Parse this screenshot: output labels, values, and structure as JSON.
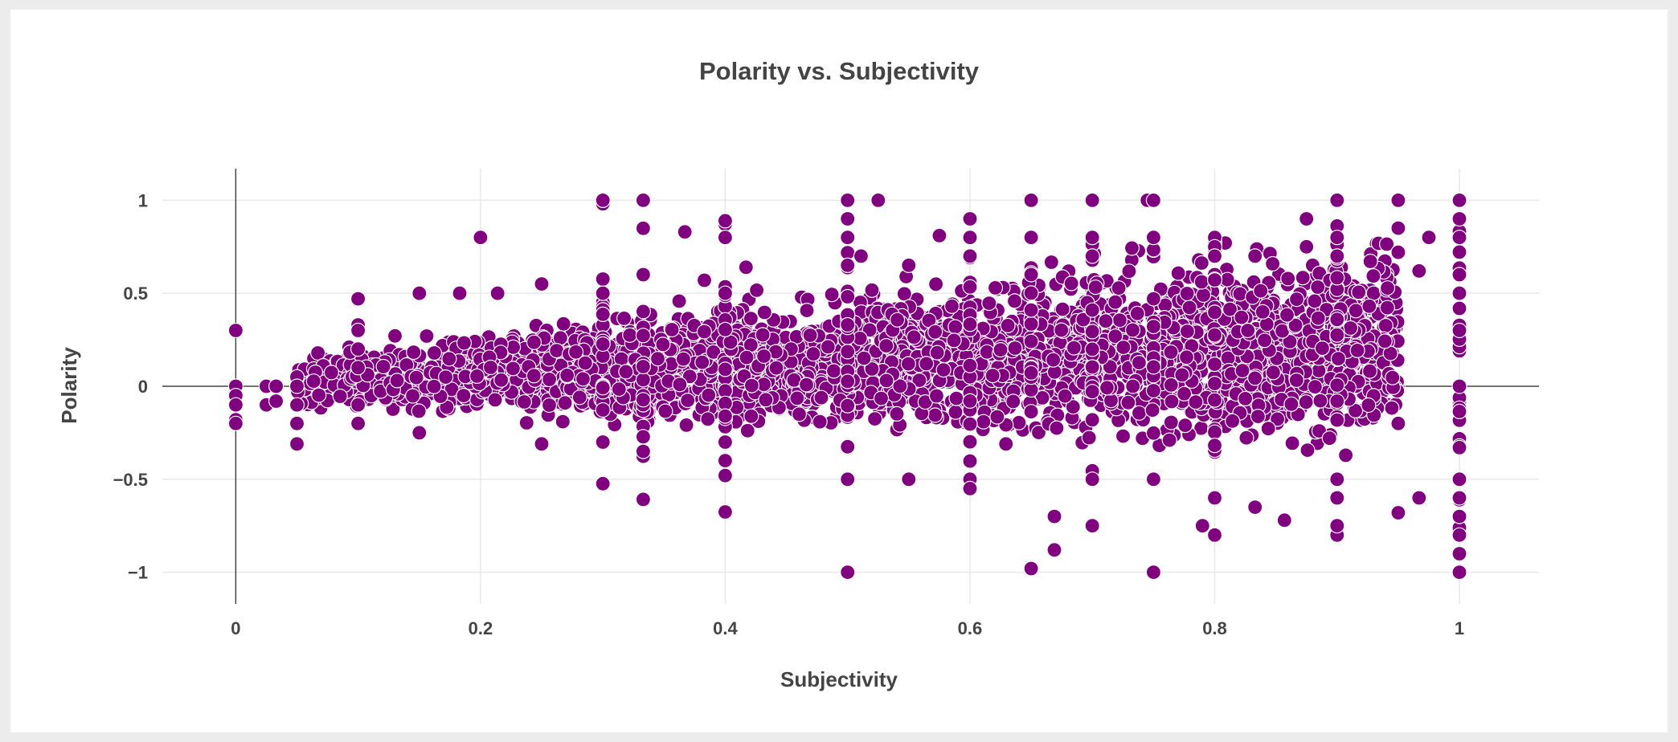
{
  "chart_data": {
    "type": "scatter",
    "title": "Polarity vs. Subjectivity",
    "xlabel": "Subjectivity",
    "ylabel": "Polarity",
    "xlim": [
      -0.06,
      1.065
    ],
    "ylim": [
      -1.17,
      1.17
    ],
    "xticks": [
      0,
      0.2,
      0.4,
      0.6,
      0.8,
      1
    ],
    "xtick_labels": [
      "0",
      "0.2",
      "0.4",
      "0.6",
      "0.8",
      "1"
    ],
    "yticks": [
      -1,
      -0.5,
      0,
      0.5,
      1
    ],
    "ytick_labels": [
      "−1",
      "−0.5",
      "0",
      "0.5",
      "1"
    ],
    "grid": true,
    "legend": "none",
    "marker_color": "#800080",
    "marker_edge_color": "#ffffff",
    "approx_point_count": 3500,
    "series": [
      {
        "points": [
          [
            0,
            0.3
          ],
          [
            0,
            0
          ],
          [
            0,
            -0.05
          ],
          [
            0,
            -0.1
          ],
          [
            0,
            -0.18
          ],
          [
            0,
            -0.2
          ],
          [
            0.025,
            0
          ],
          [
            0.025,
            -0.1
          ],
          [
            0.033,
            0
          ],
          [
            0.033,
            -0.08
          ],
          [
            0.05,
            0.05
          ],
          [
            0.05,
            0
          ],
          [
            0.05,
            -0.1
          ],
          [
            0.05,
            -0.2
          ],
          [
            0.05,
            -0.31
          ],
          [
            0.1,
            0.47
          ],
          [
            0.1,
            0.33
          ],
          [
            0.1,
            0.3
          ],
          [
            0.1,
            0.2
          ],
          [
            0.1,
            0.1
          ],
          [
            0.1,
            -0.1
          ],
          [
            0.1,
            -0.2
          ],
          [
            0.15,
            0.5
          ],
          [
            0.15,
            -0.25
          ],
          [
            0.156,
            0.27
          ],
          [
            0.183,
            0.5
          ],
          [
            0.2,
            0.8
          ],
          [
            0.214,
            0.5
          ],
          [
            0.25,
            0.55
          ],
          [
            0.25,
            -0.31
          ],
          [
            0.3,
            1
          ],
          [
            0.3,
            0.5
          ],
          [
            0.3,
            -0.3
          ],
          [
            0.333,
            1
          ],
          [
            0.333,
            0.6
          ],
          [
            0.333,
            -0.35
          ],
          [
            0.367,
            0.83
          ],
          [
            0.383,
            0.57
          ],
          [
            0.4,
            0.89
          ],
          [
            0.4,
            0.8
          ],
          [
            0.4,
            0.5
          ],
          [
            0.4,
            -0.48
          ],
          [
            0.4,
            -0.4
          ],
          [
            0.4,
            -0.3
          ],
          [
            0.417,
            0.64
          ],
          [
            0.5,
            1
          ],
          [
            0.5,
            0.9
          ],
          [
            0.5,
            0.8
          ],
          [
            0.5,
            0.65
          ],
          [
            0.5,
            -0.5
          ],
          [
            0.5,
            -1
          ],
          [
            0.511,
            0.7
          ],
          [
            0.525,
            1
          ],
          [
            0.55,
            0.65
          ],
          [
            0.55,
            -0.5
          ],
          [
            0.575,
            0.81
          ],
          [
            0.6,
            0.9
          ],
          [
            0.6,
            0.8
          ],
          [
            0.6,
            0.7
          ],
          [
            0.6,
            -0.5
          ],
          [
            0.6,
            -0.55
          ],
          [
            0.65,
            1
          ],
          [
            0.65,
            0.8
          ],
          [
            0.65,
            0.6
          ],
          [
            0.65,
            -0.98
          ],
          [
            0.669,
            -0.7
          ],
          [
            0.669,
            -0.88
          ],
          [
            0.7,
            1
          ],
          [
            0.7,
            0.8
          ],
          [
            0.7,
            0.7
          ],
          [
            0.7,
            -0.75
          ],
          [
            0.7,
            -0.5
          ],
          [
            0.745,
            1
          ],
          [
            0.75,
            1
          ],
          [
            0.75,
            0.8
          ],
          [
            0.75,
            -1
          ],
          [
            0.75,
            -0.5
          ],
          [
            0.8,
            0.8
          ],
          [
            0.8,
            0.75
          ],
          [
            0.8,
            0.7
          ],
          [
            0.8,
            -0.8
          ],
          [
            0.8,
            -0.6
          ],
          [
            0.79,
            -0.75
          ],
          [
            0.833,
            0.7
          ],
          [
            0.833,
            -0.65
          ],
          [
            0.857,
            -0.72
          ],
          [
            0.875,
            0.9
          ],
          [
            0.875,
            0.75
          ],
          [
            0.9,
            1
          ],
          [
            0.9,
            0.8
          ],
          [
            0.9,
            0.7
          ],
          [
            0.9,
            -0.8
          ],
          [
            0.9,
            -0.75
          ],
          [
            0.9,
            -0.6
          ],
          [
            0.9,
            -0.5
          ],
          [
            0.95,
            1
          ],
          [
            0.95,
            0.85
          ],
          [
            0.95,
            0.72
          ],
          [
            0.95,
            -0.2
          ],
          [
            0.95,
            -0.68
          ],
          [
            0.967,
            0.62
          ],
          [
            0.967,
            -0.6
          ],
          [
            0.975,
            0.8
          ],
          [
            1,
            1
          ],
          [
            1,
            0.9
          ],
          [
            1,
            0.8
          ],
          [
            1,
            0.6
          ],
          [
            1,
            0.5
          ],
          [
            1,
            0.3
          ],
          [
            1,
            0
          ],
          [
            1,
            -0.33
          ],
          [
            1,
            -0.5
          ],
          [
            1,
            -0.6
          ],
          [
            1,
            -0.7
          ],
          [
            1,
            -0.8
          ],
          [
            1,
            -0.9
          ],
          [
            1,
            -1
          ]
        ]
      }
    ]
  }
}
